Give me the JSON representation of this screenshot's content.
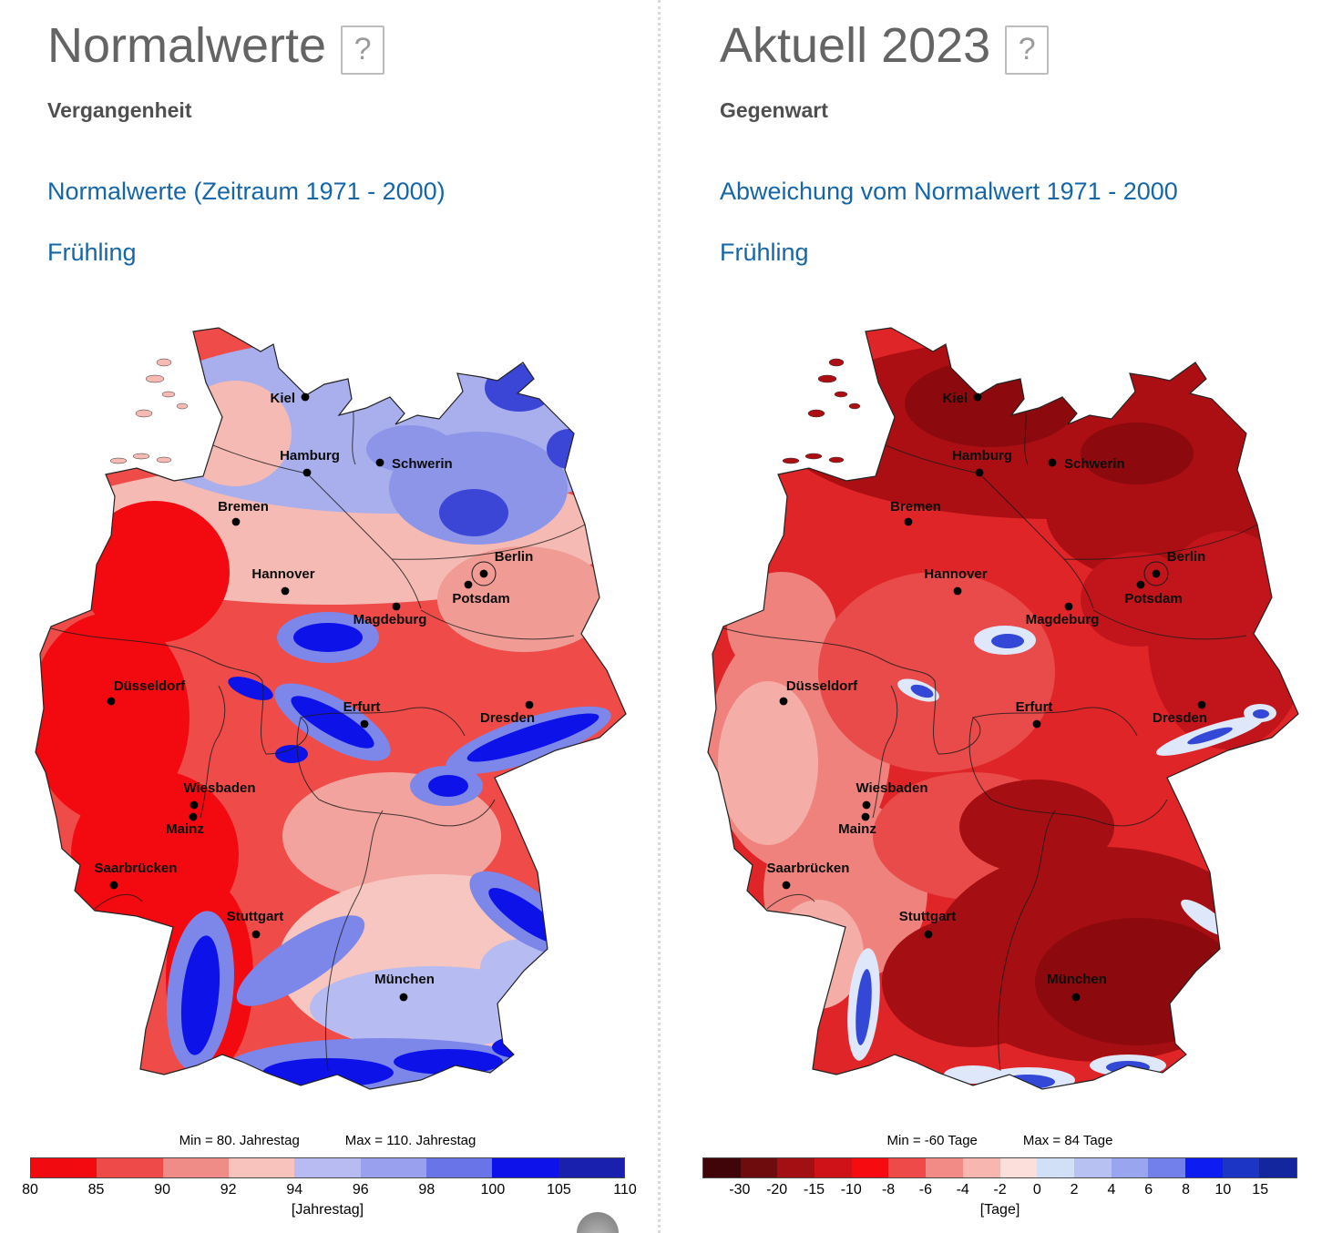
{
  "colors": {
    "link": "#1566a9",
    "title_gray": "#646464",
    "subtitle_gray": "#4f4f4f",
    "divider": "#dadada"
  },
  "cities": [
    "Kiel",
    "Hamburg",
    "Schwerin",
    "Bremen",
    "Berlin",
    "Hannover",
    "Potsdam",
    "Magdeburg",
    "Düsseldorf",
    "Erfurt",
    "Dresden",
    "Wiesbaden",
    "Mainz",
    "Saarbrücken",
    "Stuttgart",
    "München"
  ],
  "panels": [
    {
      "title": "Normalwerte",
      "help_label": "?",
      "subtitle": "Vergangenheit",
      "link_period": "Normalwerte (Zeitraum 1971 - 2000)",
      "link_season": "Frühling",
      "legend": {
        "min_label": "Min = 80. Jahrestag",
        "max_label": "Max = 110. Jahrestag",
        "unit_label": "[Jahrestag]",
        "tick_mode": "edges",
        "tick_labels": [
          "80",
          "85",
          "90",
          "92",
          "94",
          "96",
          "98",
          "100",
          "105",
          "110"
        ],
        "segment_colors": [
          "#f20a11",
          "#ee4a49",
          "#f08c88",
          "#f8c3bd",
          "#b7bbf1",
          "#99a0ee",
          "#6a74e9",
          "#0d12ea",
          "#1a20ae"
        ]
      },
      "map_theme": {
        "base": "#ee4b49",
        "north": "#a9aeec",
        "north_blue": "#8d95e9",
        "deep_blue_patch": "#3b45d6",
        "pink_band": "#f6bab4",
        "brandenburg": "#f19b95",
        "strong_red": "#f30a10",
        "franconia": "#f2a39d",
        "se_pale": "#f7c6c0",
        "se_lavender": "#b6bbf1",
        "mountain_halo": "#7d87ea",
        "mountain_blue": "#0c12e8"
      }
    },
    {
      "title": "Aktuell 2023",
      "help_label": "?",
      "subtitle": "Gegenwart",
      "link_period": "Abweichung vom Normalwert 1971 - 2000",
      "link_season": "Frühling",
      "legend": {
        "min_label": "Min = -60 Tage",
        "max_label": "Max = 84 Tage",
        "unit_label": "[Tage]",
        "tick_mode": "interior",
        "tick_labels": [
          "-30",
          "-20",
          "-15",
          "-10",
          "-8",
          "-6",
          "-4",
          "-2",
          "0",
          "2",
          "4",
          "6",
          "8",
          "10",
          "15"
        ],
        "segment_colors": [
          "#400508",
          "#6e0b0d",
          "#a31013",
          "#cf1217",
          "#f50b10",
          "#ee4a49",
          "#f28a85",
          "#f7b7b0",
          "#fcdeda",
          "#d2e0f7",
          "#b7c2f3",
          "#99a6ef",
          "#7280ec",
          "#0d1df2",
          "#1c35c4",
          "#13269e"
        ]
      },
      "map_theme": {
        "base": "#e02528",
        "north_dark": "#ab0f13",
        "darkest": "#8c0a0e",
        "east_dark": "#c2151b",
        "mid_light": "#e84b49",
        "west_light": "#ef827d",
        "west_pale": "#f5ada7",
        "south_dark": "#a50e12",
        "blue_halo": "#dfe7fa",
        "blue": "#3448d8"
      }
    }
  ]
}
